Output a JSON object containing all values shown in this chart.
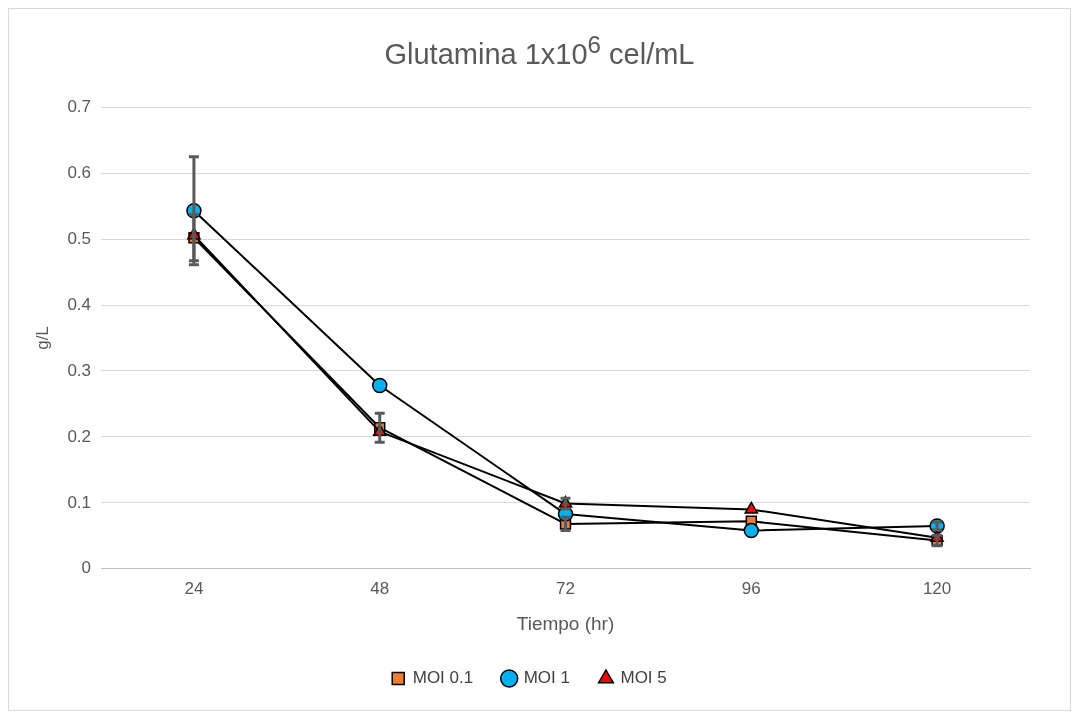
{
  "chart_data": {
    "type": "line",
    "title": "Glutamina 1x10$^{6}$ cel/mL",
    "xlabel": "Tiempo (hr)",
    "ylabel": "g/L",
    "categories": [
      "24",
      "48",
      "72",
      "96",
      "120"
    ],
    "series": [
      {
        "name": "MOI 0.1",
        "color": "#ed7d31",
        "marker": "square",
        "values": [
          0.502,
          0.214,
          0.068,
          0.072,
          0.043
        ],
        "errors": [
          0.035,
          0.022,
          0.01,
          null,
          0.008
        ]
      },
      {
        "name": "MOI 1",
        "color": "#00b0f0",
        "marker": "circle",
        "values": [
          0.543,
          0.278,
          0.083,
          0.058,
          0.065
        ],
        "errors": [
          0.082,
          null,
          null,
          null,
          0.006
        ]
      },
      {
        "name": "MOI 5",
        "color": "#ff0000",
        "marker": "triangle",
        "values": [
          0.506,
          0.208,
          0.099,
          0.09,
          0.047
        ],
        "errors": [
          null,
          null,
          0.008,
          null,
          null
        ]
      }
    ],
    "ylim": [
      0,
      0.7
    ],
    "yticks": [
      0,
      0.1,
      0.2,
      0.3,
      0.4,
      0.5,
      0.6,
      0.7
    ],
    "grid": "y",
    "legend": "bottom",
    "line_style": "solid"
  }
}
